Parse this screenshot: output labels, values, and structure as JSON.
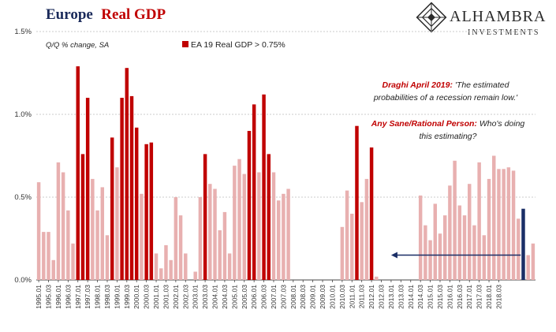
{
  "header": {
    "title_part1": "Europe",
    "title_part2": "Real GDP"
  },
  "logo": {
    "name": "ALHAMBRA",
    "sub": "INVESTMENTS"
  },
  "colors": {
    "highlight": "#c00000",
    "normal": "#e8b0b0",
    "latest": "#1a2e66",
    "arrow": "#1a2e66",
    "grid": "#bbbbbb"
  },
  "chart_data": {
    "type": "bar",
    "subtitle": "Q/Q % change, SA",
    "legend": "EA 19 Real GDP > 0.75%",
    "threshold": 0.75,
    "ylim": [
      0,
      1.5
    ],
    "yticks": [
      0,
      0.5,
      1.0,
      1.5
    ],
    "ytick_labels": [
      "0.0%",
      "0.5%",
      "1.0%",
      "1.5%"
    ],
    "x_labels": [
      "1995.01",
      "1995.03",
      "1996.01",
      "1996.03",
      "1997.01",
      "1997.03",
      "1998.01",
      "1998.03",
      "1999.01",
      "1999.03",
      "2000.01",
      "2000.03",
      "2001.01",
      "2001.03",
      "2002.01",
      "2002.03",
      "2003.01",
      "2003.03",
      "2004.01",
      "2004.03",
      "2005.01",
      "2005.03",
      "2006.01",
      "2006.03",
      "2007.01",
      "2007.03",
      "2008.01",
      "2008.03",
      "2009.01",
      "2009.03",
      "2010.01",
      "2010.03",
      "2011.01",
      "2011.03",
      "2012.01",
      "2012.03",
      "2013.01",
      "2013.03",
      "2014.01",
      "2014.03",
      "2015.01",
      "2015.03",
      "2016.01",
      "2016.03",
      "2017.01",
      "2017.03",
      "2018.01",
      "2018.03"
    ],
    "values": [
      0.59,
      0.29,
      0.29,
      0.12,
      0.71,
      0.65,
      0.42,
      0.22,
      1.29,
      0.76,
      1.1,
      0.61,
      0.42,
      0.56,
      0.27,
      0.86,
      0.68,
      1.1,
      1.28,
      1.11,
      0.92,
      0.52,
      0.82,
      0.83,
      0.16,
      0.07,
      0.21,
      0.12,
      0.5,
      0.39,
      0.16,
      0.0,
      0.05,
      0.5,
      0.76,
      0.58,
      0.55,
      0.3,
      0.41,
      0.16,
      0.69,
      0.73,
      0.64,
      0.9,
      1.06,
      0.65,
      1.12,
      0.76,
      0.65,
      0.48,
      0.52,
      0.55,
      0,
      0,
      0,
      0,
      0,
      0,
      0,
      0,
      0,
      0,
      0.32,
      0.54,
      0.4,
      0.93,
      0.47,
      0.61,
      0.8,
      0.02,
      0,
      0,
      0,
      0,
      0,
      0,
      0,
      0,
      0.51,
      0.33,
      0.24,
      0.46,
      0.28,
      0.39,
      0.57,
      0.72,
      0.45,
      0.39,
      0.58,
      0.33,
      0.71,
      0.27,
      0.61,
      0.75,
      0.67,
      0.67,
      0.68,
      0.66,
      0.37,
      0.43,
      0.15,
      0.22
    ],
    "latest_index": 99,
    "annotations": [
      {
        "red": "Draghi April 2019:",
        "black": " 'The estimated",
        "line2": "probabilities of a recession remain low.'"
      },
      {
        "red": "Any Sane/Rational Person:",
        "black": " Who's doing",
        "line2": "this estimating?"
      }
    ],
    "arrow_from_value": 0.15,
    "arrow_to_label": "2013.01"
  }
}
